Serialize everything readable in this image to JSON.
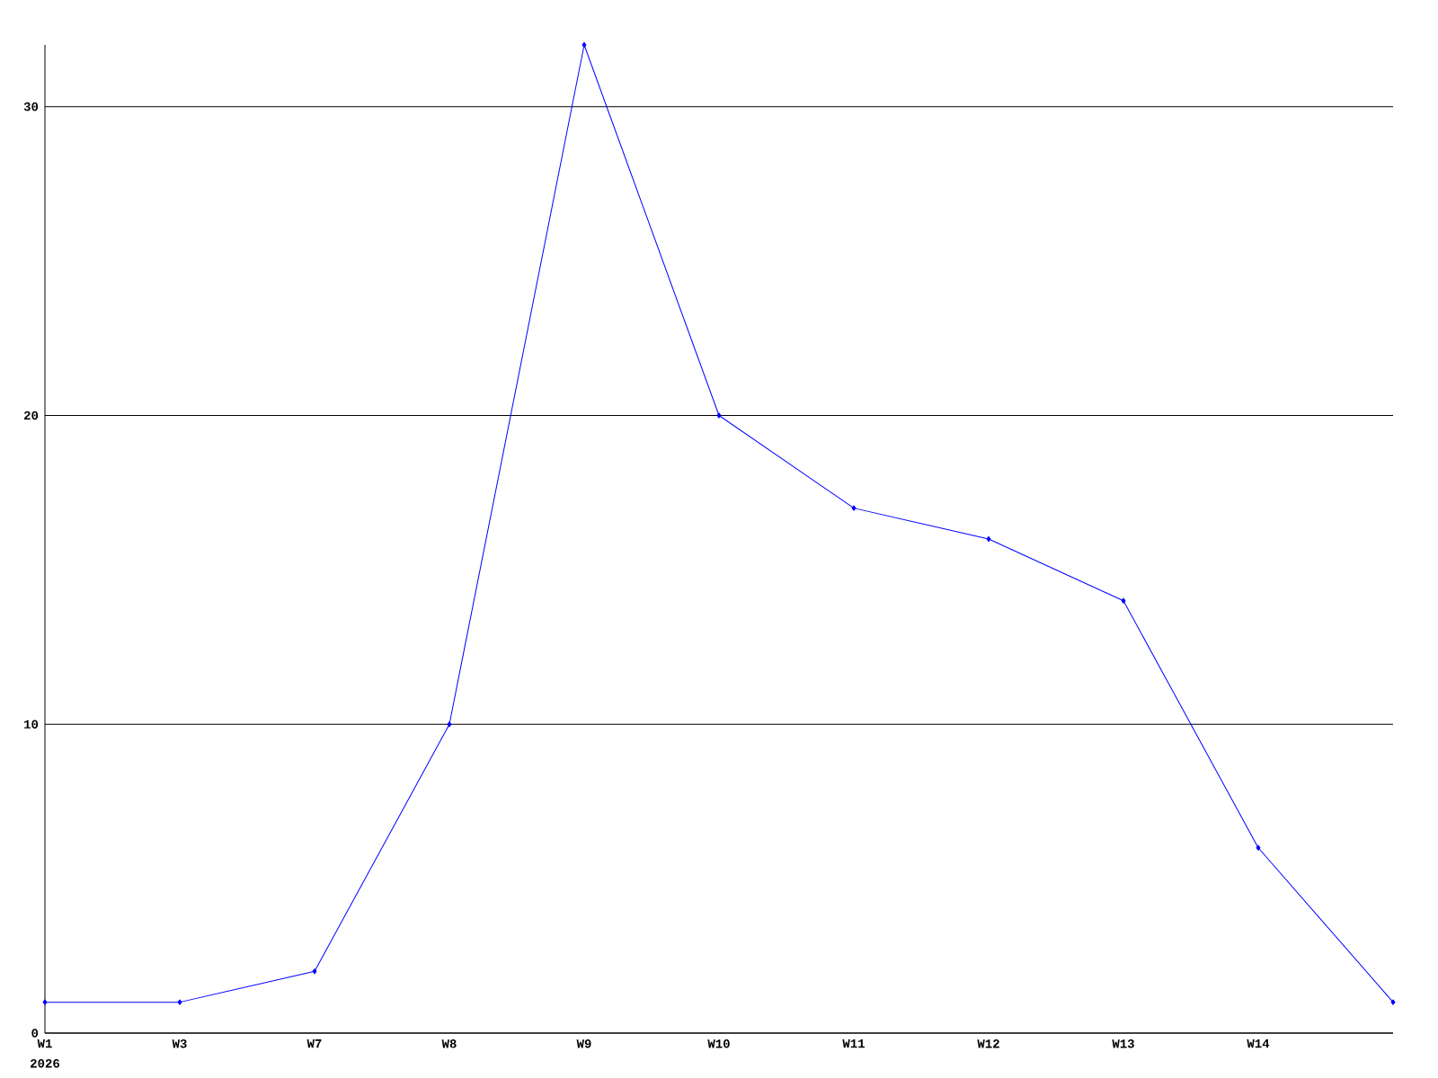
{
  "chart_data": {
    "type": "line",
    "categories": [
      "W1",
      "W3",
      "W7",
      "W8",
      "W9",
      "W10",
      "W11",
      "W12",
      "W13",
      "W14",
      null
    ],
    "series": [
      {
        "color": "#0000ff",
        "values": [
          1,
          1,
          2,
          10,
          32,
          20,
          17,
          16,
          14,
          6,
          1
        ]
      }
    ],
    "ylim": [
      0,
      32
    ],
    "yticks": [
      0,
      10,
      20,
      30
    ],
    "grid": "y",
    "marker": "diamond",
    "line_style": "solid",
    "annotations": [
      "2026"
    ]
  }
}
